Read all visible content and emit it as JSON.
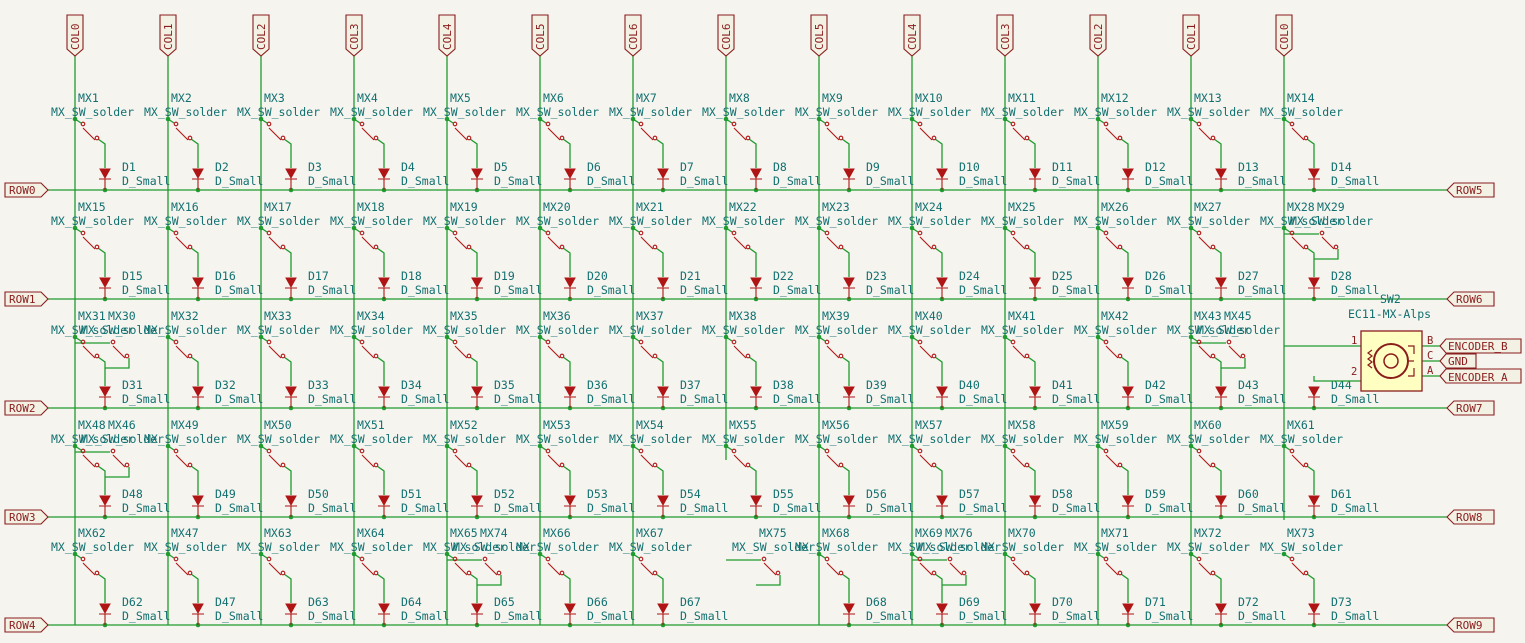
{
  "col_labels": [
    "COL0",
    "COL1",
    "COL2",
    "COL3",
    "COL4",
    "COL5",
    "COL6",
    "COL6",
    "COL5",
    "COL4",
    "COL3",
    "COL2",
    "COL1",
    "COL0"
  ],
  "row_labels_left": [
    "ROW0",
    "ROW1",
    "ROW2",
    "ROW3",
    "ROW4"
  ],
  "row_labels_right": [
    "ROW5",
    "ROW6",
    "ROW7",
    "ROW8",
    "ROW9"
  ],
  "switch_value": "MX_SW_solder",
  "diode_value": "D_Small",
  "rows": [
    {
      "cells": [
        [
          "MX1",
          "D1"
        ],
        [
          "MX2",
          "D2"
        ],
        [
          "MX3",
          "D3"
        ],
        [
          "MX4",
          "D4"
        ],
        [
          "MX5",
          "D5"
        ],
        [
          "MX6",
          "D6"
        ],
        [
          "MX7",
          "D7"
        ],
        [
          "MX8",
          "D8"
        ],
        [
          "MX9",
          "D9"
        ],
        [
          "MX10",
          "D10"
        ],
        [
          "MX11",
          "D11"
        ],
        [
          "MX12",
          "D12"
        ],
        [
          "MX13",
          "D13"
        ],
        [
          "MX14",
          "D14"
        ]
      ]
    },
    {
      "cells": [
        [
          "MX15",
          "D15"
        ],
        [
          "MX16",
          "D16"
        ],
        [
          "MX17",
          "D17"
        ],
        [
          "MX18",
          "D18"
        ],
        [
          "MX19",
          "D19"
        ],
        [
          "MX20",
          "D20"
        ],
        [
          "MX21",
          "D21"
        ],
        [
          "MX22",
          "D22"
        ],
        [
          "MX23",
          "D23"
        ],
        [
          "MX24",
          "D24"
        ],
        [
          "MX25",
          "D25"
        ],
        [
          "MX26",
          "D26"
        ],
        [
          "MX27",
          "D27"
        ],
        [
          "MX28",
          "D28"
        ]
      ]
    },
    {
      "cells": [
        [
          "MX31",
          "D31"
        ],
        [
          "MX32",
          "D32"
        ],
        [
          "MX33",
          "D33"
        ],
        [
          "MX34",
          "D34"
        ],
        [
          "MX35",
          "D35"
        ],
        [
          "MX36",
          "D36"
        ],
        [
          "MX37",
          "D37"
        ],
        [
          "MX38",
          "D38"
        ],
        [
          "MX39",
          "D39"
        ],
        [
          "MX40",
          "D40"
        ],
        [
          "MX41",
          "D41"
        ],
        [
          "MX42",
          "D42"
        ],
        [
          "MX43",
          "D43"
        ],
        [
          "",
          "D44"
        ]
      ]
    },
    {
      "cells": [
        [
          "MX48",
          "D48"
        ],
        [
          "MX49",
          "D49"
        ],
        [
          "MX50",
          "D50"
        ],
        [
          "MX51",
          "D51"
        ],
        [
          "MX52",
          "D52"
        ],
        [
          "MX53",
          "D53"
        ],
        [
          "MX54",
          "D54"
        ],
        [
          "MX55",
          "D55"
        ],
        [
          "MX56",
          "D56"
        ],
        [
          "MX57",
          "D57"
        ],
        [
          "MX58",
          "D58"
        ],
        [
          "MX59",
          "D59"
        ],
        [
          "MX60",
          "D60"
        ],
        [
          "MX61",
          "D61"
        ]
      ]
    },
    {
      "cells": [
        [
          "MX62",
          "D62"
        ],
        [
          "MX47",
          "D47"
        ],
        [
          "MX63",
          "D63"
        ],
        [
          "MX64",
          "D64"
        ],
        [
          "MX65",
          "D65"
        ],
        [
          "MX66",
          "D66"
        ],
        [
          "MX67",
          "D67"
        ],
        [
          "",
          ""
        ],
        [
          "MX68",
          "D68"
        ],
        [
          "MX69",
          "D69"
        ],
        [
          "MX70",
          "D70"
        ],
        [
          "MX71",
          "D71"
        ],
        [
          "MX72",
          "D72"
        ],
        [
          "MX73",
          "D73"
        ]
      ]
    }
  ],
  "extra_switches": [
    {
      "ref": "MX29",
      "row": 1,
      "col": 13
    },
    {
      "ref": "MX30",
      "row": 2,
      "col": 0
    },
    {
      "ref": "MX45",
      "row": 2,
      "col": 12
    },
    {
      "ref": "MX46",
      "row": 3,
      "col": 0
    },
    {
      "ref": "MX74",
      "row": 4,
      "col": 4
    },
    {
      "ref": "MX75",
      "row": 4,
      "col": 7
    },
    {
      "ref": "MX76",
      "row": 4,
      "col": 9
    }
  ],
  "encoder": {
    "ref": "SW2",
    "value": "EC11-MX-Alps",
    "pins": [
      "1",
      "2",
      "B",
      "C",
      "A"
    ],
    "nets": [
      "ENCODER_B",
      "GND",
      "ENCODER_A"
    ]
  }
}
